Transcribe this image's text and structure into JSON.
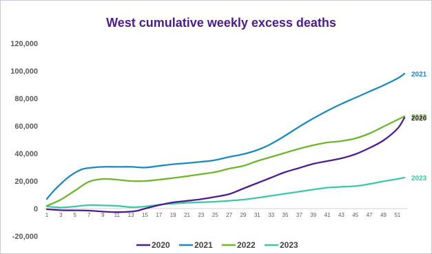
{
  "chart_data": {
    "type": "line",
    "title": "West cumulative weekly excess deaths",
    "xlabel": "",
    "ylabel": "",
    "ylim": [
      -20000,
      120000
    ],
    "yticks": [
      {
        "value": 120000,
        "label": "120,000"
      },
      {
        "value": 100000,
        "label": "100,000"
      },
      {
        "value": 80000,
        "label": "80,000"
      },
      {
        "value": 60000,
        "label": "60,000"
      },
      {
        "value": 40000,
        "label": "40,000"
      },
      {
        "value": 20000,
        "label": "20,000"
      },
      {
        "value": 0,
        "label": "0"
      },
      {
        "value": -20000,
        "label": "-20,000"
      }
    ],
    "xlim": [
      1,
      52
    ],
    "xticks": [
      1,
      3,
      5,
      7,
      9,
      11,
      13,
      15,
      17,
      19,
      21,
      23,
      25,
      27,
      29,
      31,
      33,
      35,
      37,
      39,
      41,
      43,
      45,
      47,
      49,
      51
    ],
    "grid": false,
    "legend": "bottom",
    "series": [
      {
        "name": "2020",
        "color": "#4b1b8f",
        "end_label": "2020",
        "points": [
          [
            1,
            -500
          ],
          [
            3,
            -1200
          ],
          [
            5,
            -1300
          ],
          [
            7,
            -1500
          ],
          [
            9,
            -2200
          ],
          [
            11,
            -2600
          ],
          [
            13,
            -2200
          ],
          [
            14,
            -1500
          ],
          [
            15,
            0
          ],
          [
            17,
            2500
          ],
          [
            19,
            4500
          ],
          [
            21,
            5600
          ],
          [
            23,
            6800
          ],
          [
            25,
            8500
          ],
          [
            27,
            10500
          ],
          [
            29,
            14500
          ],
          [
            31,
            18500
          ],
          [
            33,
            22500
          ],
          [
            35,
            26500
          ],
          [
            37,
            29500
          ],
          [
            39,
            32500
          ],
          [
            41,
            34500
          ],
          [
            43,
            36500
          ],
          [
            45,
            39500
          ],
          [
            47,
            44000
          ],
          [
            49,
            49500
          ],
          [
            51,
            58000
          ],
          [
            52,
            66000
          ]
        ]
      },
      {
        "name": "2021",
        "color": "#1b88c0",
        "end_label": "2021",
        "points": [
          [
            1,
            7000
          ],
          [
            2,
            13000
          ],
          [
            3,
            18000
          ],
          [
            4,
            22500
          ],
          [
            5,
            26000
          ],
          [
            6,
            28500
          ],
          [
            7,
            29500
          ],
          [
            9,
            30300
          ],
          [
            11,
            30300
          ],
          [
            13,
            30300
          ],
          [
            15,
            29800
          ],
          [
            17,
            31000
          ],
          [
            19,
            32200
          ],
          [
            21,
            33000
          ],
          [
            23,
            34000
          ],
          [
            25,
            35200
          ],
          [
            27,
            37500
          ],
          [
            29,
            39500
          ],
          [
            31,
            42500
          ],
          [
            33,
            47000
          ],
          [
            35,
            53000
          ],
          [
            37,
            59500
          ],
          [
            39,
            65500
          ],
          [
            41,
            71000
          ],
          [
            43,
            76000
          ],
          [
            45,
            80500
          ],
          [
            47,
            85000
          ],
          [
            49,
            89500
          ],
          [
            51,
            94500
          ],
          [
            52,
            98000
          ]
        ]
      },
      {
        "name": "2022",
        "color": "#6cb52d",
        "end_label": "2022",
        "points": [
          [
            1,
            2000
          ],
          [
            3,
            6500
          ],
          [
            5,
            13000
          ],
          [
            7,
            19500
          ],
          [
            9,
            21500
          ],
          [
            11,
            21000
          ],
          [
            13,
            20000
          ],
          [
            15,
            20000
          ],
          [
            17,
            21000
          ],
          [
            19,
            22200
          ],
          [
            21,
            23500
          ],
          [
            23,
            25000
          ],
          [
            25,
            26500
          ],
          [
            27,
            29000
          ],
          [
            29,
            31000
          ],
          [
            31,
            34500
          ],
          [
            33,
            37500
          ],
          [
            35,
            40500
          ],
          [
            37,
            43500
          ],
          [
            39,
            46000
          ],
          [
            41,
            48000
          ],
          [
            43,
            49000
          ],
          [
            45,
            51000
          ],
          [
            47,
            54500
          ],
          [
            49,
            59500
          ],
          [
            51,
            64500
          ],
          [
            52,
            67000
          ]
        ]
      },
      {
        "name": "2023",
        "color": "#3cc7a8",
        "end_label": "2023",
        "points": [
          [
            1,
            1500
          ],
          [
            3,
            800
          ],
          [
            5,
            1500
          ],
          [
            7,
            2500
          ],
          [
            9,
            2300
          ],
          [
            11,
            2000
          ],
          [
            13,
            1000
          ],
          [
            15,
            1500
          ],
          [
            17,
            2800
          ],
          [
            19,
            3600
          ],
          [
            21,
            4200
          ],
          [
            23,
            4600
          ],
          [
            25,
            5000
          ],
          [
            27,
            5700
          ],
          [
            29,
            6500
          ],
          [
            31,
            7800
          ],
          [
            33,
            9300
          ],
          [
            35,
            10800
          ],
          [
            37,
            12300
          ],
          [
            39,
            13800
          ],
          [
            41,
            15200
          ],
          [
            43,
            15800
          ],
          [
            45,
            16300
          ],
          [
            47,
            17800
          ],
          [
            49,
            19800
          ],
          [
            51,
            21500
          ],
          [
            52,
            22500
          ]
        ]
      }
    ]
  }
}
